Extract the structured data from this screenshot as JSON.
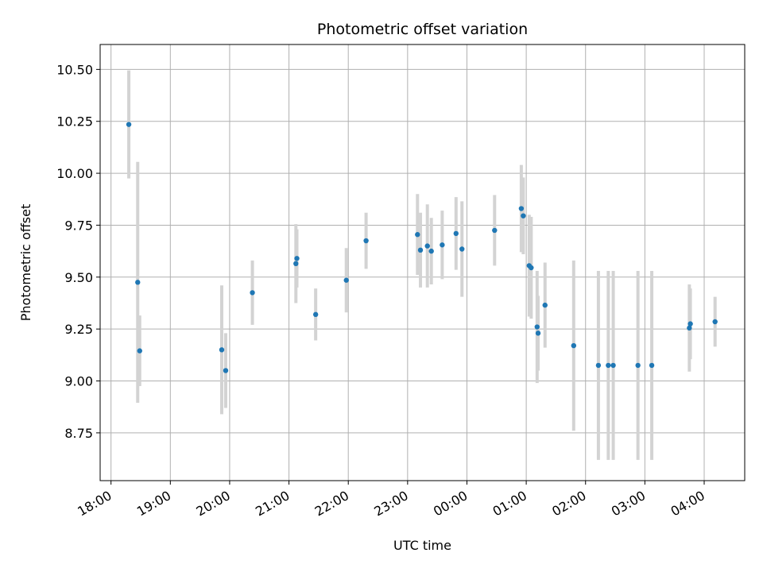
{
  "chart_data": {
    "type": "scatter",
    "title": "Photometric offset variation",
    "xlabel": "UTC time",
    "ylabel": "Photometric offset",
    "xlim": [
      "17:49",
      "04:41"
    ],
    "ylim": [
      8.52,
      10.62
    ],
    "x_axis_type": "time",
    "grid": true,
    "x_ticks": [
      "18:00",
      "19:00",
      "20:00",
      "21:00",
      "22:00",
      "23:00",
      "00:00",
      "01:00",
      "02:00",
      "03:00",
      "04:00"
    ],
    "y_ticks": [
      8.75,
      9.0,
      9.25,
      9.5,
      9.75,
      10.0,
      10.25,
      10.5
    ],
    "y_tick_labels": [
      "8.75",
      "9.00",
      "9.25",
      "9.50",
      "9.75",
      "10.00",
      "10.25",
      "10.50"
    ],
    "marker_color": "#1f77b4",
    "errorbar_color": "#d3d3d3",
    "series": [
      {
        "points": [
          {
            "x": "18:18",
            "y": 10.235,
            "err": 0.26
          },
          {
            "x": "18:27",
            "y": 9.475,
            "err": 0.58
          },
          {
            "x": "18:29",
            "y": 9.145,
            "err": 0.17
          },
          {
            "x": "19:52",
            "y": 9.15,
            "err": 0.31
          },
          {
            "x": "19:56",
            "y": 9.05,
            "err": 0.18
          },
          {
            "x": "20:23",
            "y": 9.425,
            "err": 0.155
          },
          {
            "x": "21:07",
            "y": 9.565,
            "err": 0.19
          },
          {
            "x": "21:08",
            "y": 9.59,
            "err": 0.14
          },
          {
            "x": "21:27",
            "y": 9.32,
            "err": 0.125
          },
          {
            "x": "21:58",
            "y": 9.485,
            "err": 0.155
          },
          {
            "x": "22:18",
            "y": 9.675,
            "err": 0.135
          },
          {
            "x": "23:10",
            "y": 9.705,
            "err": 0.195
          },
          {
            "x": "23:13",
            "y": 9.63,
            "err": 0.18
          },
          {
            "x": "23:20",
            "y": 9.65,
            "err": 0.2
          },
          {
            "x": "23:24",
            "y": 9.625,
            "err": 0.16
          },
          {
            "x": "23:35",
            "y": 9.655,
            "err": 0.165
          },
          {
            "x": "23:49",
            "y": 9.71,
            "err": 0.175
          },
          {
            "x": "23:55",
            "y": 9.635,
            "err": 0.23
          },
          {
            "x": "00:28",
            "y": 9.725,
            "err": 0.17
          },
          {
            "x": "00:55",
            "y": 9.83,
            "err": 0.21
          },
          {
            "x": "00:57",
            "y": 9.795,
            "err": 0.185
          },
          {
            "x": "01:03",
            "y": 9.555,
            "err": 0.245
          },
          {
            "x": "01:05",
            "y": 9.545,
            "err": 0.245
          },
          {
            "x": "01:11",
            "y": 9.26,
            "err": 0.27
          },
          {
            "x": "01:12",
            "y": 9.23,
            "err": 0.18
          },
          {
            "x": "01:19",
            "y": 9.365,
            "err": 0.205
          },
          {
            "x": "01:48",
            "y": 9.17,
            "err": 0.41
          },
          {
            "x": "02:13",
            "y": 9.075,
            "err": 0.455
          },
          {
            "x": "02:23",
            "y": 9.075,
            "err": 0.455
          },
          {
            "x": "02:28",
            "y": 9.075,
            "err": 0.455
          },
          {
            "x": "02:53",
            "y": 9.075,
            "err": 0.455
          },
          {
            "x": "03:07",
            "y": 9.075,
            "err": 0.455
          },
          {
            "x": "03:45",
            "y": 9.255,
            "err": 0.21
          },
          {
            "x": "03:46",
            "y": 9.275,
            "err": 0.17
          },
          {
            "x": "04:11",
            "y": 9.285,
            "err": 0.12
          }
        ]
      }
    ]
  }
}
